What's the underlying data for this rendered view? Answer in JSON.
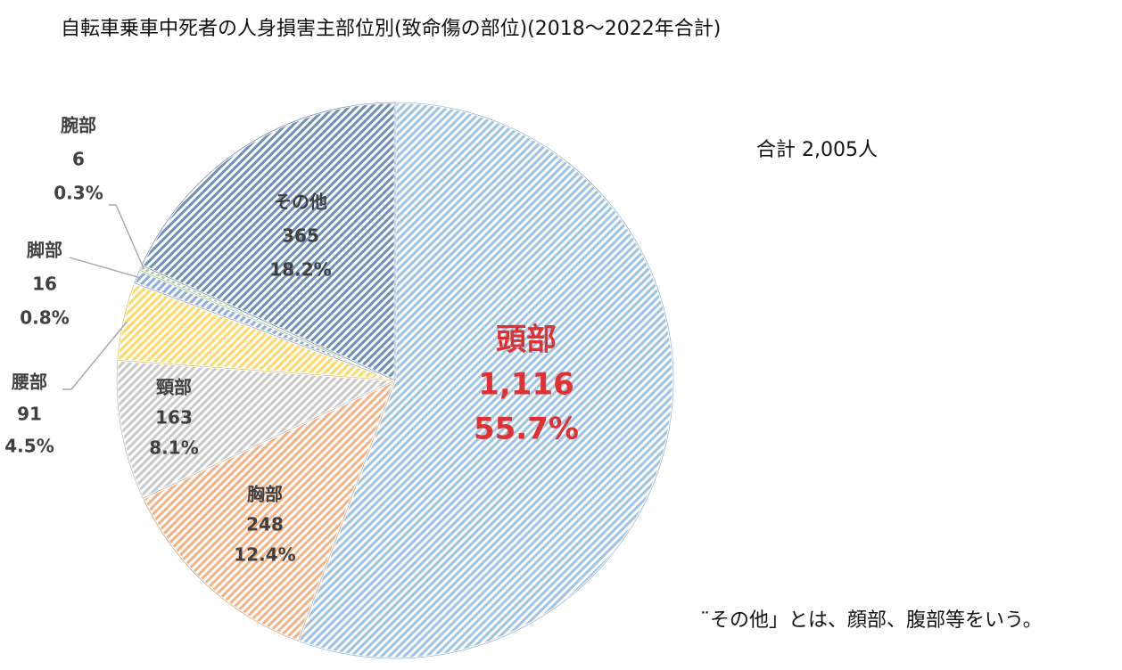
{
  "title": "自転車乗車中死者の人身損害主部位別(致命傷の部位)(2018〜2022年合計)",
  "total_label": "合計 2,005人",
  "footnote": "¨その他」とは、顔部、腹部等をいう。",
  "chart_data": {
    "type": "pie",
    "title": "自転車乗車中死者の人身損害主部位別(致命傷の部位)(2018〜2022年合計)",
    "total": 2005,
    "start_angle_deg": 0,
    "direction": "clockwise",
    "slices": [
      {
        "name": "頭部",
        "value": 1116,
        "value_label": "1,116",
        "percent_label": "55.7%",
        "color": "#9dc3e6",
        "label_color": "#e03030"
      },
      {
        "name": "胸部",
        "value": 248,
        "value_label": "248",
        "percent_label": "12.4%",
        "color": "#f4b183",
        "label_color": "#404040"
      },
      {
        "name": "頸部",
        "value": 163,
        "value_label": "163",
        "percent_label": "8.1%",
        "color": "#c9c9c9",
        "label_color": "#404040"
      },
      {
        "name": "腰部",
        "value": 91,
        "value_label": "91",
        "percent_label": "4.5%",
        "color": "#ffd966",
        "label_color": "#404040"
      },
      {
        "name": "脚部",
        "value": 16,
        "value_label": "16",
        "percent_label": "0.8%",
        "color": "#8faadc",
        "label_color": "#404040"
      },
      {
        "name": "腕部",
        "value": 6,
        "value_label": "6",
        "percent_label": "0.3%",
        "color": "#a9d18e",
        "label_color": "#404040"
      },
      {
        "name": "その他",
        "value": 365,
        "value_label": "365",
        "percent_label": "18.2%",
        "color": "#6f8fb8",
        "label_color": "#404040"
      }
    ]
  }
}
